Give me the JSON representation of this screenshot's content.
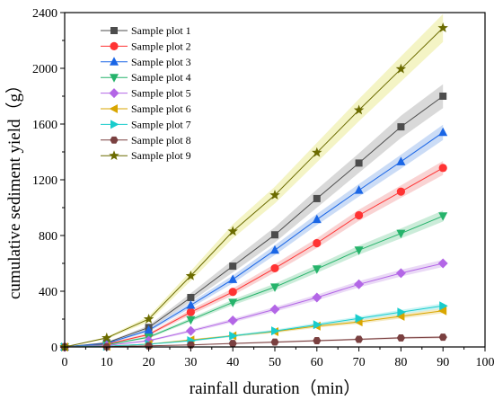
{
  "chart_data": {
    "type": "line",
    "xlabel": "rainfall duration（min）",
    "ylabel": "cumulative sediment yield（g）",
    "xlim": [
      0,
      100
    ],
    "ylim": [
      0,
      2400
    ],
    "x_ticks": [
      0,
      10,
      20,
      30,
      40,
      50,
      60,
      70,
      80,
      90,
      100
    ],
    "y_ticks": [
      0,
      400,
      800,
      1200,
      1600,
      2000,
      2400
    ],
    "grid": false,
    "legend_position": "top-left",
    "x": [
      0,
      10,
      20,
      30,
      40,
      50,
      60,
      70,
      80,
      90
    ],
    "series": [
      {
        "name": "Sample plot 1",
        "marker": "square",
        "color": "#4d4d4d",
        "band": "#bfbfbf",
        "values": [
          0,
          30,
          140,
          355,
          580,
          805,
          1065,
          1320,
          1580,
          1800
        ],
        "band_halfwidth": [
          0,
          5,
          15,
          30,
          45,
          55,
          65,
          70,
          80,
          85
        ]
      },
      {
        "name": "Sample plot 2",
        "marker": "circle",
        "color": "#ff3333",
        "band": "#f5b5b5",
        "values": [
          0,
          20,
          90,
          250,
          395,
          565,
          745,
          945,
          1115,
          1285
        ],
        "band_halfwidth": [
          0,
          5,
          10,
          20,
          25,
          30,
          35,
          40,
          45,
          50
        ]
      },
      {
        "name": "Sample plot 3",
        "marker": "triangle-up",
        "color": "#1a66e6",
        "band": "#a8c4f0",
        "values": [
          0,
          25,
          120,
          300,
          485,
          695,
          915,
          1125,
          1330,
          1540
        ],
        "band_halfwidth": [
          0,
          5,
          12,
          20,
          28,
          35,
          40,
          45,
          50,
          55
        ]
      },
      {
        "name": "Sample plot 4",
        "marker": "triangle-down",
        "color": "#26b36b",
        "band": "#a8dfc0",
        "values": [
          0,
          15,
          70,
          195,
          320,
          430,
          560,
          695,
          815,
          940
        ],
        "band_halfwidth": [
          0,
          4,
          8,
          14,
          20,
          25,
          28,
          32,
          36,
          40
        ]
      },
      {
        "name": "Sample plot 5",
        "marker": "diamond",
        "color": "#b366e6",
        "band": "#dcc0f0",
        "values": [
          0,
          10,
          45,
          115,
          190,
          270,
          355,
          450,
          530,
          600
        ],
        "band_halfwidth": [
          0,
          3,
          6,
          10,
          14,
          17,
          20,
          22,
          24,
          26
        ]
      },
      {
        "name": "Sample plot 6",
        "marker": "triangle-left",
        "color": "#d9a600",
        "band": "#f0dc99",
        "values": [
          0,
          5,
          20,
          50,
          80,
          110,
          150,
          180,
          220,
          260
        ],
        "band_halfwidth": [
          0,
          2,
          4,
          6,
          8,
          10,
          12,
          14,
          16,
          18
        ]
      },
      {
        "name": "Sample plot 7",
        "marker": "triangle-right",
        "color": "#19cccc",
        "band": "#a8ecec",
        "values": [
          0,
          5,
          20,
          45,
          80,
          115,
          160,
          205,
          250,
          295
        ],
        "band_halfwidth": [
          0,
          2,
          4,
          6,
          8,
          10,
          12,
          14,
          16,
          18
        ]
      },
      {
        "name": "Sample plot 8",
        "marker": "hexagon",
        "color": "#7a4040",
        "band": "#c9a8a8",
        "values": [
          0,
          2,
          8,
          15,
          25,
          35,
          45,
          55,
          65,
          70
        ],
        "band_halfwidth": [
          0,
          1,
          2,
          3,
          4,
          5,
          6,
          6,
          7,
          8
        ]
      },
      {
        "name": "Sample plot 9",
        "marker": "star",
        "color": "#6b6b00",
        "band": "#ecec9f",
        "values": [
          0,
          65,
          200,
          510,
          830,
          1090,
          1395,
          1700,
          1995,
          2290
        ],
        "band_halfwidth": [
          0,
          8,
          20,
          35,
          50,
          60,
          70,
          80,
          90,
          100
        ]
      }
    ]
  }
}
